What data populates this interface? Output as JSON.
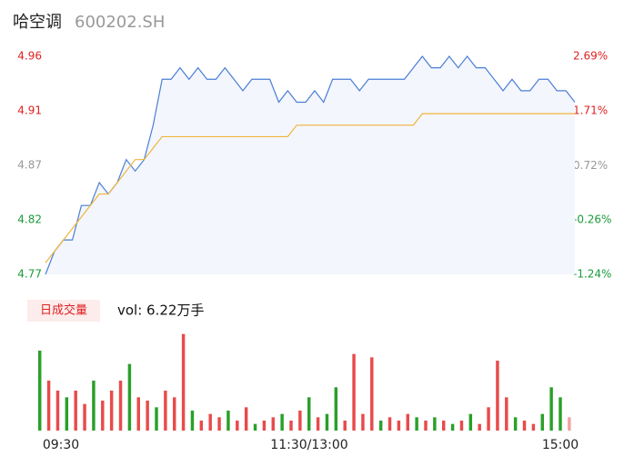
{
  "chart_data": [
    {
      "type": "line",
      "title": "哈空调",
      "subtitle": "600202.SH",
      "series": [
        {
          "color": "#4a7fd6",
          "values": [
            4.77,
            4.79,
            4.8,
            4.8,
            4.83,
            4.83,
            4.85,
            4.84,
            4.85,
            4.87,
            4.86,
            4.87,
            4.9,
            4.94,
            4.94,
            4.95,
            4.94,
            4.95,
            4.94,
            4.94,
            4.95,
            4.94,
            4.93,
            4.94,
            4.94,
            4.94,
            4.92,
            4.93,
            4.92,
            4.92,
            4.93,
            4.92,
            4.94,
            4.94,
            4.94,
            4.93,
            4.94,
            4.94,
            4.94,
            4.94,
            4.94,
            4.95,
            4.96,
            4.95,
            4.95,
            4.96,
            4.95,
            4.96,
            4.95,
            4.95,
            4.94,
            4.93,
            4.94,
            4.93,
            4.93,
            4.94,
            4.94,
            4.93,
            4.93,
            4.92
          ]
        },
        {
          "color": "#f0b43c",
          "values": [
            4.78,
            4.79,
            4.8,
            4.81,
            4.82,
            4.83,
            4.84,
            4.84,
            4.85,
            4.86,
            4.87,
            4.87,
            4.88,
            4.89,
            4.89,
            4.89,
            4.89,
            4.89,
            4.89,
            4.89,
            4.89,
            4.89,
            4.89,
            4.89,
            4.89,
            4.89,
            4.89,
            4.89,
            4.9,
            4.9,
            4.9,
            4.9,
            4.9,
            4.9,
            4.9,
            4.9,
            4.9,
            4.9,
            4.9,
            4.9,
            4.9,
            4.9,
            4.91,
            4.91,
            4.91,
            4.91,
            4.91,
            4.91,
            4.91,
            4.91,
            4.91,
            4.91,
            4.91,
            4.91,
            4.91,
            4.91,
            4.91,
            4.91,
            4.91,
            4.91
          ]
        }
      ],
      "area_color": "#f4f6fd",
      "ylim": [
        4.77,
        4.96
      ],
      "yticks": [
        4.77,
        {
          "value": 4.8175,
          "label": "4.82"
        },
        {
          "value": 4.865,
          "label": "4.87"
        },
        {
          "value": 4.9125,
          "label": "4.91"
        },
        4.96
      ],
      "ytick_colors": [
        "#1a9a3a",
        "#1a9a3a",
        "#999999",
        "#e02020",
        "#e02020"
      ],
      "y2lim": [
        -1.24,
        2.69
      ],
      "y2ticks": [
        {
          "value": -1.24,
          "label": "-1.24%"
        },
        {
          "value": -0.26,
          "label": "-0.26%"
        },
        {
          "value": 0.72,
          "label": "0.72%"
        },
        {
          "value": 1.71,
          "label": "1.71%"
        },
        {
          "value": 2.69,
          "label": "2.69%"
        }
      ],
      "x_labels": [
        "09:30",
        "11:30/13:00",
        "15:00"
      ]
    },
    {
      "type": "bar",
      "legend_label": "日成交量",
      "annotation": "vol: 6.22万手",
      "values": [
        2400,
        1500,
        1200,
        1000,
        1200,
        800,
        1500,
        900,
        1200,
        1500,
        2000,
        1000,
        900,
        700,
        1200,
        1000,
        2900,
        600,
        300,
        500,
        400,
        600,
        300,
        700,
        200,
        300,
        400,
        500,
        300,
        600,
        1000,
        400,
        500,
        1300,
        300,
        2300,
        500,
        2200,
        300,
        400,
        300,
        500,
        400,
        300,
        400,
        300,
        200,
        300,
        500,
        200,
        700,
        2100,
        1000,
        400,
        300,
        200,
        500,
        1300,
        1000,
        400
      ],
      "colors": [
        "#2aa02a",
        "#e84b4b",
        "#e84b4b",
        "#2aa02a",
        "#e84b4b",
        "#e84b4b",
        "#2aa02a",
        "#e84b4b",
        "#e84b4b",
        "#e84b4b",
        "#2aa02a",
        "#e84b4b",
        "#e84b4b",
        "#2aa02a",
        "#e84b4b",
        "#e84b4b",
        "#e84b4b",
        "#2aa02a",
        "#e84b4b",
        "#e84b4b",
        "#e84b4b",
        "#2aa02a",
        "#e84b4b",
        "#e84b4b",
        "#2aa02a",
        "#e84b4b",
        "#e84b4b",
        "#2aa02a",
        "#e84b4b",
        "#e84b4b",
        "#2aa02a",
        "#e84b4b",
        "#2aa02a",
        "#2aa02a",
        "#e84b4b",
        "#e84b4b",
        "#e84b4b",
        "#e84b4b",
        "#2aa02a",
        "#e84b4b",
        "#e84b4b",
        "#e84b4b",
        "#2aa02a",
        "#e84b4b",
        "#2aa02a",
        "#e84b4b",
        "#2aa02a",
        "#e84b4b",
        "#2aa02a",
        "#e84b4b",
        "#e84b4b",
        "#e84b4b",
        "#e84b4b",
        "#2aa02a",
        "#e84b4b",
        "#e84b4b",
        "#2aa02a",
        "#2aa02a",
        "#2aa02a",
        "#f4a0a0"
      ],
      "ylim": [
        0,
        3000
      ]
    }
  ]
}
